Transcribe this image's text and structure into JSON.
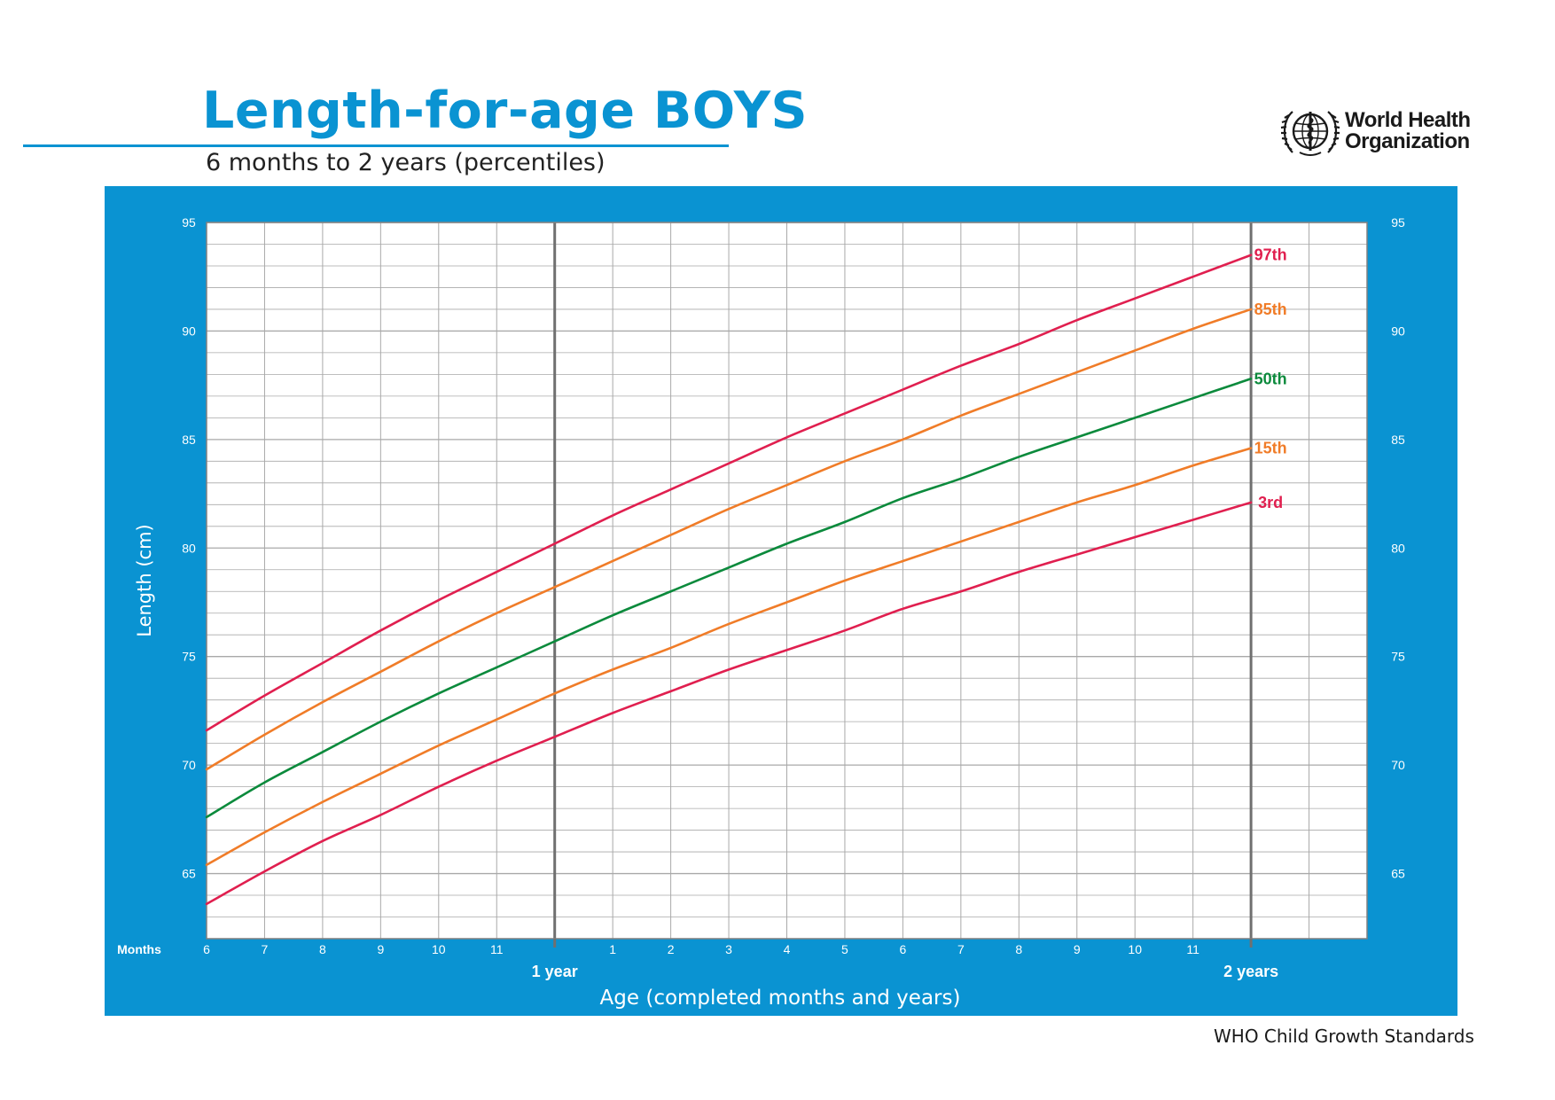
{
  "header": {
    "title": "Length-for-age BOYS",
    "subtitle": "6 months to 2 years (percentiles)",
    "org_line1": "World Health",
    "org_line2": "Organization",
    "footer": "WHO Child Growth Standards"
  },
  "colors": {
    "brand_blue": "#0a93d2",
    "p97": "#e01f4f",
    "p85": "#f07c28",
    "p50": "#0b8a3c",
    "p15": "#f07c28",
    "p3": "#e01f4f",
    "grid": "#a9a9a9"
  },
  "chart_data": {
    "type": "line",
    "title": "",
    "xlabel": "Age (completed months and years)",
    "ylabel": "Length (cm)",
    "x_axis_title_label": "Months",
    "x": [
      6,
      7,
      8,
      9,
      10,
      11,
      12,
      13,
      14,
      15,
      16,
      17,
      18,
      19,
      20,
      21,
      22,
      23,
      24
    ],
    "x_tick_labels": [
      "6",
      "7",
      "8",
      "9",
      "10",
      "11",
      "",
      "1",
      "2",
      "3",
      "4",
      "5",
      "6",
      "7",
      "8",
      "9",
      "10",
      "11",
      ""
    ],
    "year_labels": [
      {
        "x": 12,
        "label": "1 year"
      },
      {
        "x": 24,
        "label": "2 years"
      }
    ],
    "xlim": [
      6,
      26
    ],
    "ylim": [
      62,
      95
    ],
    "y_ticks": [
      65,
      70,
      75,
      80,
      85,
      90,
      95
    ],
    "grid": true,
    "legend": "curve-end labels on right",
    "series": [
      {
        "name": "97th",
        "color": "#e01f4f",
        "values": [
          71.6,
          73.2,
          74.7,
          76.2,
          77.6,
          78.9,
          80.2,
          81.5,
          82.7,
          83.9,
          85.1,
          86.2,
          87.3,
          88.4,
          89.4,
          90.5,
          91.5,
          92.5,
          93.5
        ]
      },
      {
        "name": "85th",
        "color": "#f07c28",
        "values": [
          69.8,
          71.4,
          72.9,
          74.3,
          75.7,
          77.0,
          78.2,
          79.4,
          80.6,
          81.8,
          82.9,
          84.0,
          85.0,
          86.1,
          87.1,
          88.1,
          89.1,
          90.1,
          91.0
        ]
      },
      {
        "name": "50th",
        "color": "#0b8a3c",
        "values": [
          67.6,
          69.2,
          70.6,
          72.0,
          73.3,
          74.5,
          75.7,
          76.9,
          78.0,
          79.1,
          80.2,
          81.2,
          82.3,
          83.2,
          84.2,
          85.1,
          86.0,
          86.9,
          87.8
        ]
      },
      {
        "name": "15th",
        "color": "#f07c28",
        "values": [
          65.4,
          66.9,
          68.3,
          69.6,
          70.9,
          72.1,
          73.3,
          74.4,
          75.4,
          76.5,
          77.5,
          78.5,
          79.4,
          80.3,
          81.2,
          82.1,
          82.9,
          83.8,
          84.6
        ]
      },
      {
        "name": "3rd",
        "color": "#e01f4f",
        "values": [
          63.6,
          65.1,
          66.5,
          67.7,
          69.0,
          70.2,
          71.3,
          72.4,
          73.4,
          74.4,
          75.3,
          76.2,
          77.2,
          78.0,
          78.9,
          79.7,
          80.5,
          81.3,
          82.1
        ]
      }
    ]
  }
}
